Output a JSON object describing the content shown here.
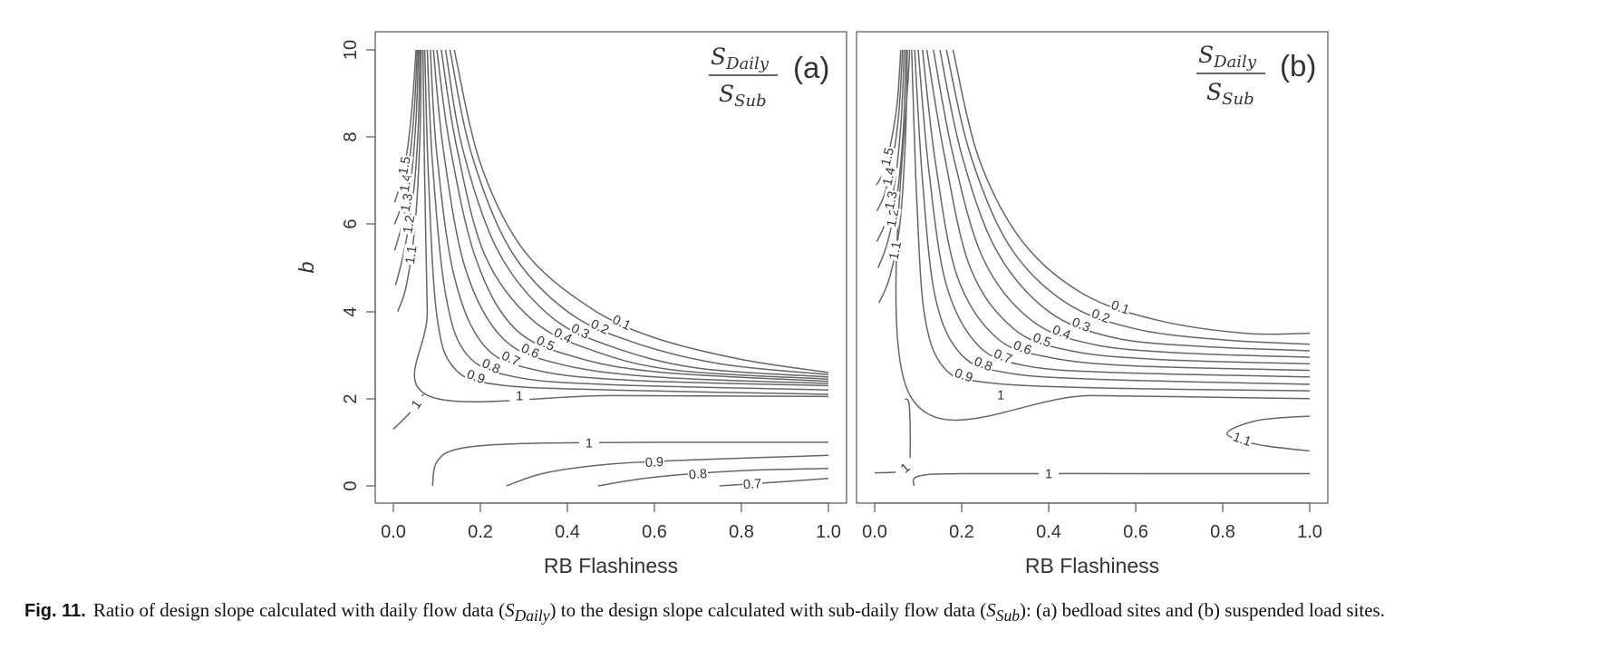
{
  "figure": {
    "caption_label": "Fig. 11.",
    "caption_text_1": "Ratio of design slope calculated with daily flow data (",
    "caption_sym_1": "S",
    "caption_sub_1": "Daily",
    "caption_text_2": ") to the design slope calculated with sub-daily flow data (",
    "caption_sym_2": "S",
    "caption_sub_2": "Sub",
    "caption_text_3": "): (a) bedload sites and (b) suspended load sites."
  },
  "chart_data": [
    {
      "type": "contour",
      "panel_label": "(a)",
      "formula": {
        "numerator": "S",
        "numerator_sub": "Daily",
        "denominator": "S",
        "denominator_sub": "Sub"
      },
      "xlabel": "RB Flashiness",
      "ylabel": "b",
      "xlim": [
        0,
        1
      ],
      "ylim": [
        0,
        10
      ],
      "xticks": [
        "0.0",
        "0.2",
        "0.4",
        "0.6",
        "0.8",
        "1.0"
      ],
      "yticks": [
        "0",
        "2",
        "4",
        "6",
        "8",
        "10"
      ],
      "grid": false,
      "contour_levels": [
        {
          "level": "0.1",
          "points": [
            [
              0.14,
              10
            ],
            [
              0.2,
              7.4
            ],
            [
              0.3,
              5.4
            ],
            [
              0.45,
              4.1
            ],
            [
              0.6,
              3.4
            ],
            [
              0.8,
              2.9
            ],
            [
              1.0,
              2.6
            ]
          ]
        },
        {
          "level": "0.2",
          "points": [
            [
              0.13,
              10
            ],
            [
              0.18,
              7.6
            ],
            [
              0.27,
              5.4
            ],
            [
              0.4,
              4.0
            ],
            [
              0.55,
              3.3
            ],
            [
              0.75,
              2.8
            ],
            [
              1.0,
              2.55
            ]
          ]
        },
        {
          "level": "0.3",
          "points": [
            [
              0.12,
              10
            ],
            [
              0.16,
              7.7
            ],
            [
              0.24,
              5.4
            ],
            [
              0.36,
              3.9
            ],
            [
              0.5,
              3.2
            ],
            [
              0.7,
              2.7
            ],
            [
              1.0,
              2.5
            ]
          ]
        },
        {
          "level": "0.4",
          "points": [
            [
              0.11,
              10
            ],
            [
              0.145,
              7.8
            ],
            [
              0.21,
              5.3
            ],
            [
              0.32,
              3.8
            ],
            [
              0.46,
              3.1
            ],
            [
              0.65,
              2.65
            ],
            [
              1.0,
              2.45
            ]
          ]
        },
        {
          "level": "0.5",
          "points": [
            [
              0.1,
              10
            ],
            [
              0.13,
              7.8
            ],
            [
              0.19,
              5.2
            ],
            [
              0.28,
              3.6
            ],
            [
              0.42,
              2.95
            ],
            [
              0.62,
              2.6
            ],
            [
              1.0,
              2.4
            ]
          ]
        },
        {
          "level": "0.6",
          "points": [
            [
              0.092,
              10
            ],
            [
              0.115,
              7.7
            ],
            [
              0.165,
              5.0
            ],
            [
              0.25,
              3.4
            ],
            [
              0.38,
              2.8
            ],
            [
              0.6,
              2.5
            ],
            [
              1.0,
              2.35
            ]
          ]
        },
        {
          "level": "0.7",
          "points": [
            [
              0.085,
              10
            ],
            [
              0.1,
              7.6
            ],
            [
              0.14,
              4.8
            ],
            [
              0.21,
              3.2
            ],
            [
              0.33,
              2.65
            ],
            [
              0.55,
              2.42
            ],
            [
              1.0,
              2.3
            ]
          ]
        },
        {
          "level": "0.8",
          "points": [
            [
              0.078,
              10
            ],
            [
              0.09,
              7.4
            ],
            [
              0.12,
              4.4
            ],
            [
              0.17,
              3.0
            ],
            [
              0.28,
              2.5
            ],
            [
              0.5,
              2.32
            ],
            [
              1.0,
              2.2
            ]
          ]
        },
        {
          "level": "0.9",
          "points": [
            [
              0.072,
              10
            ],
            [
              0.081,
              7.0
            ],
            [
              0.1,
              3.9
            ],
            [
              0.14,
              2.7
            ],
            [
              0.24,
              2.32
            ],
            [
              0.5,
              2.2
            ],
            [
              1.0,
              2.1
            ]
          ]
        },
        {
          "level": "1",
          "points": [
            [
              0.068,
              10
            ],
            [
              0.072,
              7.0
            ],
            [
              0.078,
              4.0
            ],
            [
              0.08,
              2.07
            ],
            [
              0.5,
              2.07
            ],
            [
              1.0,
              2.05
            ]
          ]
        },
        {
          "level": "1.1",
          "points": [
            [
              0.064,
              10
            ],
            [
              0.061,
              8.0
            ],
            [
              0.05,
              6.0
            ],
            [
              0.03,
              4.6
            ],
            [
              0.01,
              4.0
            ]
          ]
        },
        {
          "level": "1.2",
          "points": [
            [
              0.061,
              10
            ],
            [
              0.057,
              8.2
            ],
            [
              0.045,
              6.6
            ],
            [
              0.025,
              5.4
            ],
            [
              0.005,
              4.6
            ]
          ]
        },
        {
          "level": "1.3",
          "points": [
            [
              0.058,
              10
            ],
            [
              0.052,
              8.4
            ],
            [
              0.04,
              7.0
            ],
            [
              0.02,
              6.0
            ],
            [
              0.003,
              5.4
            ]
          ]
        },
        {
          "level": "1.4",
          "points": [
            [
              0.055,
              10
            ],
            [
              0.048,
              8.6
            ],
            [
              0.036,
              7.4
            ],
            [
              0.02,
              6.5
            ],
            [
              0.003,
              6.0
            ]
          ]
        },
        {
          "level": "1.5",
          "points": [
            [
              0.052,
              10
            ],
            [
              0.044,
              8.8
            ],
            [
              0.032,
              7.7
            ],
            [
              0.018,
              7.0
            ],
            [
              0.003,
              6.5
            ]
          ]
        },
        {
          "level": "1",
          "points": [
            [
              0.0,
              1.3
            ],
            [
              0.04,
              1.7
            ],
            [
              0.065,
              2.05
            ],
            [
              0.07,
              2.1
            ]
          ]
        },
        {
          "level": "1",
          "points": [
            [
              0.09,
              0.0
            ],
            [
              0.1,
              0.55
            ],
            [
              0.15,
              0.85
            ],
            [
              0.3,
              0.97
            ],
            [
              0.6,
              1.0
            ],
            [
              1.0,
              1.0
            ]
          ]
        },
        {
          "level": "0.9",
          "points": [
            [
              0.26,
              0.0
            ],
            [
              0.35,
              0.3
            ],
            [
              0.5,
              0.5
            ],
            [
              0.7,
              0.6
            ],
            [
              1.0,
              0.7
            ]
          ]
        },
        {
          "level": "0.8",
          "points": [
            [
              0.47,
              0.0
            ],
            [
              0.6,
              0.2
            ],
            [
              0.8,
              0.35
            ],
            [
              1.0,
              0.4
            ]
          ]
        },
        {
          "level": "0.7",
          "points": [
            [
              0.75,
              0.0
            ],
            [
              0.9,
              0.1
            ],
            [
              1.0,
              0.17
            ]
          ]
        }
      ]
    },
    {
      "type": "contour",
      "panel_label": "(b)",
      "formula": {
        "numerator": "S",
        "numerator_sub": "Daily",
        "denominator": "S",
        "denominator_sub": "Sub"
      },
      "xlabel": "RB Flashiness",
      "ylabel": "",
      "xlim": [
        0,
        1
      ],
      "ylim": [
        0,
        10
      ],
      "xticks": [
        "0.0",
        "0.2",
        "0.4",
        "0.6",
        "0.8",
        "1.0"
      ],
      "yticks": [],
      "grid": false,
      "contour_levels": [
        {
          "level": "0.1",
          "points": [
            [
              0.18,
              10
            ],
            [
              0.24,
              7.5
            ],
            [
              0.34,
              5.6
            ],
            [
              0.48,
              4.4
            ],
            [
              0.65,
              3.8
            ],
            [
              0.85,
              3.5
            ],
            [
              1.0,
              3.5
            ]
          ]
        },
        {
          "level": "0.2",
          "points": [
            [
              0.165,
              10
            ],
            [
              0.22,
              7.6
            ],
            [
              0.31,
              5.5
            ],
            [
              0.44,
              4.2
            ],
            [
              0.6,
              3.6
            ],
            [
              0.8,
              3.35
            ],
            [
              1.0,
              3.25
            ]
          ]
        },
        {
          "level": "0.3",
          "points": [
            [
              0.15,
              10
            ],
            [
              0.2,
              7.6
            ],
            [
              0.28,
              5.4
            ],
            [
              0.4,
              4.0
            ],
            [
              0.55,
              3.4
            ],
            [
              0.75,
              3.2
            ],
            [
              1.0,
              3.1
            ]
          ]
        },
        {
          "level": "0.4",
          "points": [
            [
              0.135,
              10
            ],
            [
              0.18,
              7.6
            ],
            [
              0.25,
              5.2
            ],
            [
              0.36,
              3.8
            ],
            [
              0.5,
              3.25
            ],
            [
              0.7,
              3.05
            ],
            [
              1.0,
              2.95
            ]
          ]
        },
        {
          "level": "0.5",
          "points": [
            [
              0.12,
              10
            ],
            [
              0.16,
              7.6
            ],
            [
              0.22,
              5.0
            ],
            [
              0.32,
              3.6
            ],
            [
              0.45,
              3.1
            ],
            [
              0.65,
              2.9
            ],
            [
              1.0,
              2.8
            ]
          ]
        },
        {
          "level": "0.6",
          "points": [
            [
              0.11,
              10
            ],
            [
              0.14,
              7.4
            ],
            [
              0.19,
              4.8
            ],
            [
              0.28,
              3.4
            ],
            [
              0.4,
              2.95
            ],
            [
              0.6,
              2.75
            ],
            [
              1.0,
              2.65
            ]
          ]
        },
        {
          "level": "0.7",
          "points": [
            [
              0.1,
              10
            ],
            [
              0.125,
              7.2
            ],
            [
              0.165,
              4.6
            ],
            [
              0.24,
              3.2
            ],
            [
              0.35,
              2.75
            ],
            [
              0.55,
              2.6
            ],
            [
              1.0,
              2.5
            ]
          ]
        },
        {
          "level": "0.8",
          "points": [
            [
              0.092,
              10
            ],
            [
              0.11,
              7.0
            ],
            [
              0.14,
              4.3
            ],
            [
              0.2,
              3.0
            ],
            [
              0.3,
              2.6
            ],
            [
              0.5,
              2.45
            ],
            [
              1.0,
              2.33
            ]
          ]
        },
        {
          "level": "0.9",
          "points": [
            [
              0.085,
              10
            ],
            [
              0.097,
              6.5
            ],
            [
              0.115,
              3.9
            ],
            [
              0.16,
              2.7
            ],
            [
              0.25,
              2.38
            ],
            [
              0.5,
              2.25
            ],
            [
              1.0,
              2.18
            ]
          ]
        },
        {
          "level": "1",
          "points": [
            [
              0.08,
              10
            ],
            [
              0.08,
              2.1
            ],
            [
              0.5,
              2.07
            ],
            [
              1.0,
              2.0
            ]
          ]
        },
        {
          "level": "1.1",
          "points": [
            [
              0.075,
              10
            ],
            [
              0.071,
              8.0
            ],
            [
              0.058,
              6.0
            ],
            [
              0.035,
              4.8
            ],
            [
              0.01,
              4.2
            ]
          ]
        },
        {
          "level": "1.2",
          "points": [
            [
              0.072,
              10
            ],
            [
              0.066,
              8.2
            ],
            [
              0.052,
              6.7
            ],
            [
              0.03,
              5.6
            ],
            [
              0.008,
              5.0
            ]
          ]
        },
        {
          "level": "1.3",
          "points": [
            [
              0.068,
              10
            ],
            [
              0.061,
              8.4
            ],
            [
              0.047,
              7.0
            ],
            [
              0.027,
              6.1
            ],
            [
              0.005,
              5.6
            ]
          ]
        },
        {
          "level": "1.4",
          "points": [
            [
              0.064,
              10
            ],
            [
              0.056,
              8.6
            ],
            [
              0.042,
              7.5
            ],
            [
              0.023,
              6.7
            ],
            [
              0.005,
              6.3
            ]
          ]
        },
        {
          "level": "1.5",
          "points": [
            [
              0.06,
              10
            ],
            [
              0.052,
              8.8
            ],
            [
              0.038,
              7.9
            ],
            [
              0.02,
              7.2
            ],
            [
              0.004,
              6.9
            ]
          ]
        },
        {
          "level": "1",
          "points": [
            [
              0.07,
              2.0
            ],
            [
              0.08,
              1.8
            ],
            [
              0.08,
              0.5
            ],
            [
              0.06,
              0.33
            ],
            [
              0.0,
              0.3
            ]
          ]
        },
        {
          "level": "1",
          "points": [
            [
              0.09,
              0.0
            ],
            [
              0.1,
              0.22
            ],
            [
              0.2,
              0.28
            ],
            [
              0.6,
              0.28
            ],
            [
              1.0,
              0.28
            ]
          ]
        },
        {
          "level": "1.1",
          "points": [
            [
              1.0,
              1.6
            ],
            [
              0.88,
              1.5
            ],
            [
              0.81,
              1.2
            ],
            [
              0.88,
              0.95
            ],
            [
              1.0,
              0.8
            ]
          ]
        }
      ]
    }
  ]
}
